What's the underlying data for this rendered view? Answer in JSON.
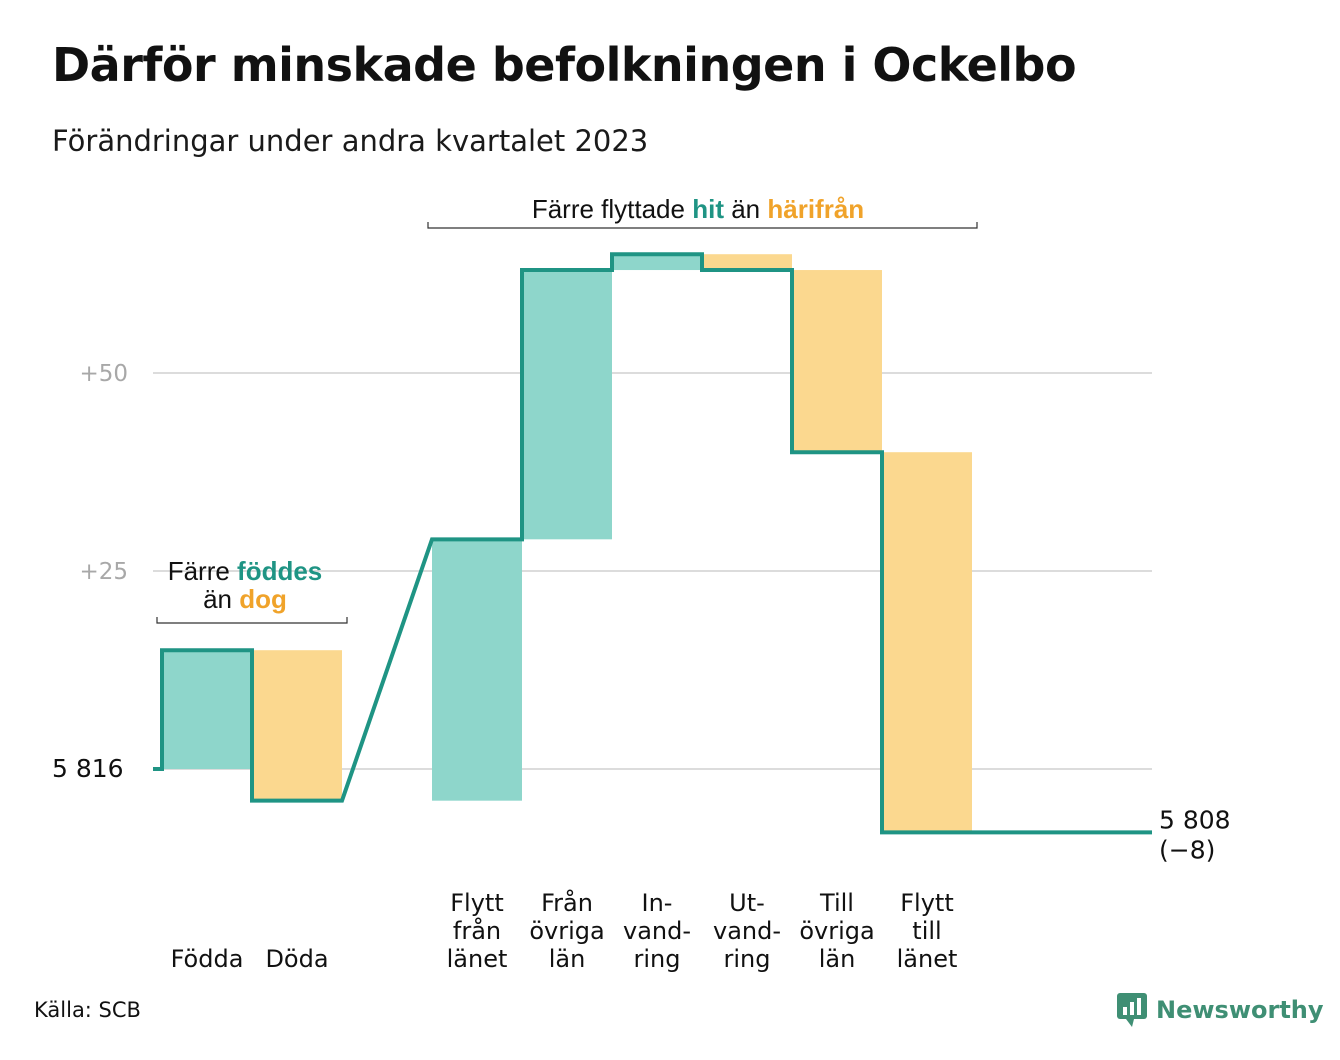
{
  "title": "Därför minskade befolkningen i Ockelbo",
  "subtitle": "Förändringar under andra kvartalet 2023",
  "source": "Källa: SCB",
  "brand": "Newsworthy",
  "colors": {
    "increase": "#8ed6cb",
    "decrease": "#fbd88f",
    "line": "#1f9484",
    "teal_text": "#1f9484",
    "orange_text": "#f0a32a",
    "grid": "#dcdcdc"
  },
  "annotations": {
    "births": {
      "line1": "Färre",
      "hl1": "föddes",
      "line2": "än",
      "hl2": "dog"
    },
    "moves": {
      "part1": "Färre flyttade",
      "hl1": "hit",
      "part2": "än",
      "hl2": "härifrån"
    }
  },
  "chart_data": {
    "type": "waterfall",
    "title": "Därför minskade befolkningen i Ockelbo",
    "subtitle": "Förändringar under andra kvartalet 2023",
    "start_value": 5816,
    "start_label": "5  816",
    "end_value": 5808,
    "end_label": "5 808",
    "end_change_label": "(−8)",
    "y_ticks": [
      {
        "value": 25,
        "label": "+25"
      },
      {
        "value": 50,
        "label": "+50"
      }
    ],
    "ylim": [
      -9,
      66
    ],
    "grid": true,
    "steps": [
      {
        "label": [
          "Födda"
        ],
        "change": 15,
        "kind": "increase"
      },
      {
        "label": [
          "Döda"
        ],
        "change": -19,
        "kind": "decrease"
      },
      {
        "label": [
          "Flytt",
          "från",
          "länet"
        ],
        "change": 33,
        "kind": "increase"
      },
      {
        "label": [
          "Från",
          "övriga",
          "län"
        ],
        "change": 34,
        "kind": "increase"
      },
      {
        "label": [
          "In-",
          "vand-",
          "ring"
        ],
        "change": 2,
        "kind": "increase"
      },
      {
        "label": [
          "Ut-",
          "vand-",
          "ring"
        ],
        "change": -2,
        "kind": "decrease"
      },
      {
        "label": [
          "Till",
          "övriga",
          "län"
        ],
        "change": -23,
        "kind": "decrease"
      },
      {
        "label": [
          "Flytt",
          "till",
          "länet"
        ],
        "change": -48,
        "kind": "decrease"
      }
    ]
  }
}
